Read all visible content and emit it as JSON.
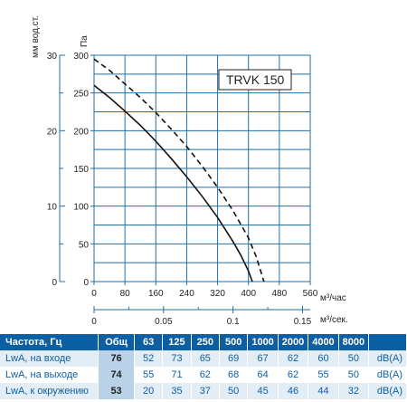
{
  "chart_data": {
    "type": "line",
    "model_label": "TRVK 150",
    "x_axis": {
      "unit": "м³/час",
      "ticks": [
        0,
        80,
        160,
        240,
        320,
        400,
        480,
        560
      ],
      "range": [
        0,
        560
      ]
    },
    "x_axis_secondary": {
      "unit": "м³/сек.",
      "ticks": [
        "0",
        "0.05",
        "0.1",
        "0.15"
      ],
      "tick_values": [
        0,
        0.05,
        0.1,
        0.15
      ]
    },
    "y_axis": {
      "unit": "Па",
      "ticks": [
        0,
        50,
        100,
        150,
        200,
        250,
        300
      ],
      "range": [
        0,
        300
      ]
    },
    "y_axis_secondary": {
      "unit": "мм вод.ст.",
      "ticks": [
        0,
        10,
        20,
        30
      ],
      "range": [
        0,
        30
      ]
    },
    "grid": true,
    "series": [
      {
        "style": "solid",
        "x": [
          0,
          40,
          80,
          120,
          160,
          200,
          240,
          280,
          320,
          360,
          380,
          400,
          410
        ],
        "y": [
          260,
          244,
          226,
          207,
          186,
          163,
          139,
          113,
          85,
          53,
          35,
          14,
          0
        ]
      },
      {
        "style": "dashed",
        "x": [
          0,
          40,
          80,
          120,
          160,
          200,
          240,
          280,
          320,
          360,
          400,
          420,
          440
        ],
        "y": [
          295,
          280,
          262,
          244,
          224,
          202,
          179,
          153,
          125,
          94,
          58,
          33,
          0
        ]
      }
    ]
  },
  "noise_table": {
    "headers": [
      "Частота, Гц",
      "Общ",
      "63",
      "125",
      "250",
      "500",
      "1000",
      "2000",
      "4000",
      "8000",
      ""
    ],
    "rows": [
      {
        "label": "LwA, на входе",
        "total": "76",
        "values": [
          "52",
          "73",
          "65",
          "69",
          "67",
          "62",
          "60",
          "50"
        ],
        "unit": "dB(A)"
      },
      {
        "label": "LwA, на выходе",
        "total": "74",
        "values": [
          "55",
          "71",
          "62",
          "68",
          "64",
          "62",
          "55",
          "50"
        ],
        "unit": "dB(A)"
      },
      {
        "label": "LwA, к окружению",
        "total": "53",
        "values": [
          "20",
          "35",
          "37",
          "50",
          "45",
          "46",
          "44",
          "32"
        ],
        "unit": "dB(A)"
      }
    ]
  }
}
